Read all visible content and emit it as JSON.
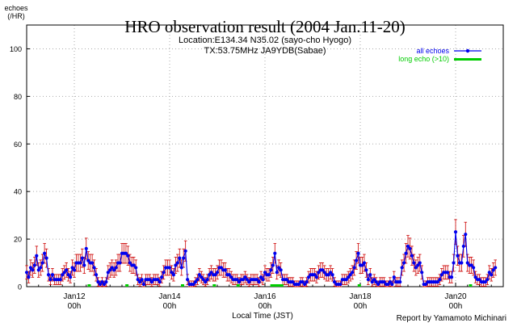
{
  "chart_data": {
    "type": "line",
    "title": "HRO observation result (2004 Jan.11-20)",
    "subtitle_lines": [
      "Location:E134.34 N35.02 (sayo-cho Hyogo)",
      "TX:53.75MHz JA9YDB(Sabae)"
    ],
    "ylabel_lines": [
      "echoes",
      "(/HR)"
    ],
    "xlabel": "Local Time (JST)",
    "credit": "Report by Yamamoto Michinari",
    "ylim": [
      0,
      110
    ],
    "xlim": [
      0,
      240
    ],
    "grid": true,
    "legend_position": "top-right",
    "yticks": [
      0,
      20,
      40,
      60,
      80,
      100
    ],
    "xticks": [
      {
        "hour": 24,
        "date": "Jan12",
        "time": "00h"
      },
      {
        "hour": 72,
        "date": "Jan14",
        "time": "00h"
      },
      {
        "hour": 120,
        "date": "Jan16",
        "time": "00h"
      },
      {
        "hour": 168,
        "date": "Jan18",
        "time": "00h"
      },
      {
        "hour": 216,
        "date": "Jan20",
        "time": "00h"
      }
    ],
    "colors": {
      "all_echoes": "#0000ee",
      "error_bars": "#cc0000",
      "long_echo": "#00cc00",
      "grid": "#aaaaaa"
    },
    "series": [
      {
        "name": "all echoes",
        "x_start_hour": 0,
        "x_step_hour": 1,
        "values": [
          6,
          4,
          8,
          7,
          9,
          13,
          7,
          8,
          10,
          14,
          12,
          5,
          3,
          5,
          3,
          3,
          3,
          3,
          5,
          6,
          7,
          5,
          4,
          8,
          7,
          10,
          10,
          10,
          12,
          9,
          16,
          11,
          10,
          10,
          8,
          5,
          2,
          1,
          2,
          1,
          2,
          6,
          7,
          8,
          7,
          8,
          10,
          10,
          14,
          14,
          14,
          13,
          10,
          9,
          9,
          8,
          3,
          2,
          3,
          1,
          3,
          3,
          3,
          2,
          3,
          3,
          3,
          2,
          4,
          6,
          8,
          8,
          8,
          6,
          5,
          9,
          10,
          12,
          8,
          12,
          15,
          3,
          1,
          1,
          1,
          2,
          3,
          5,
          4,
          3,
          2,
          3,
          5,
          6,
          5,
          5,
          6,
          8,
          8,
          7,
          7,
          5,
          5,
          4,
          3,
          3,
          3,
          2,
          3,
          3,
          4,
          3,
          2,
          3,
          3,
          3,
          3,
          2,
          4,
          3,
          6,
          5,
          5,
          7,
          9,
          14,
          6,
          8,
          7,
          3,
          3,
          3,
          2,
          2,
          2,
          1,
          1,
          1,
          2,
          2,
          1,
          2,
          4,
          5,
          5,
          5,
          4,
          6,
          7,
          7,
          6,
          5,
          5,
          6,
          5,
          2,
          1,
          1,
          1,
          3,
          3,
          3,
          4,
          5,
          6,
          8,
          11,
          14,
          9,
          9,
          10,
          7,
          3,
          5,
          2,
          3,
          2,
          1,
          2,
          2,
          2,
          1,
          1,
          2,
          1,
          4,
          2,
          2,
          2,
          8,
          10,
          14,
          17,
          16,
          13,
          10,
          8,
          9,
          10,
          6,
          1,
          1,
          2,
          2,
          2,
          2,
          2,
          2,
          3,
          5,
          6,
          6,
          6,
          4,
          4,
          10,
          23,
          13,
          10,
          10,
          17,
          22,
          10,
          9,
          9,
          8,
          4,
          3,
          3,
          2,
          2,
          2,
          3,
          6,
          5,
          7,
          8
        ]
      },
      {
        "name": "long echo (>10)",
        "x": [
          31,
          50,
          78,
          94,
          106,
          123,
          124,
          125,
          126,
          127,
          128,
          167,
          223
        ],
        "values": [
          0,
          0,
          0,
          0,
          0,
          0,
          0,
          0,
          0,
          0,
          0,
          0,
          0
        ]
      }
    ]
  }
}
